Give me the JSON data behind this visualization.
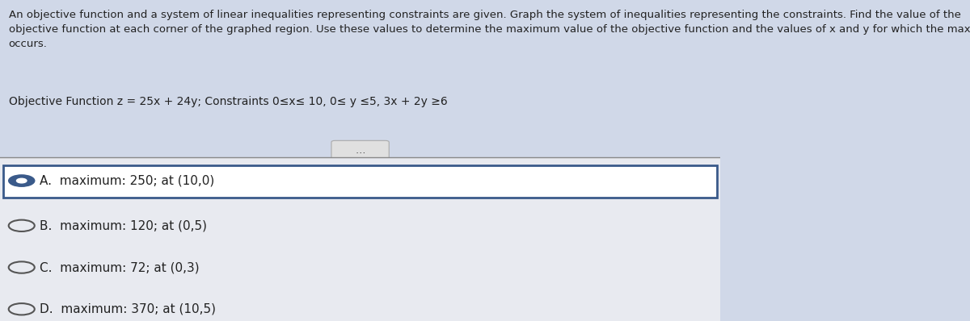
{
  "background_color": "#d0d8e8",
  "header_bg": "#d0d8e8",
  "answer_area_bg": "#e8eaf0",
  "selected_box_bg": "#ffffff",
  "header_text": "An objective function and a system of linear inequalities representing constraints are given. Graph the system of inequalities representing the constraints. Find the value of the\nobjective function at each corner of the graphed region. Use these values to determine the maximum value of the objective function and the values of x and y for which the maximum\noccurs.",
  "objective_line": "Objective Function z = 25x + 24y; Constraints 0≤x≤ 10, 0≤ y ≤5, 3x + 2y ≥6",
  "options": [
    {
      "label": "A.",
      "text": "maximum: 250; at (10,0)",
      "selected": true
    },
    {
      "label": "B.",
      "text": "maximum: 120; at (0,5)",
      "selected": false
    },
    {
      "label": "C.",
      "text": "maximum: 72; at (0,3)",
      "selected": false
    },
    {
      "label": "D.",
      "text": "maximum: 370; at (10,5)",
      "selected": false
    }
  ],
  "header_fontsize": 9.5,
  "objective_fontsize": 10,
  "option_fontsize": 11,
  "selected_border_color": "#3a5a8a",
  "divider_color": "#888888",
  "radio_color": "#3a5a8a",
  "text_color": "#222222",
  "dots_button_color": "#cccccc"
}
